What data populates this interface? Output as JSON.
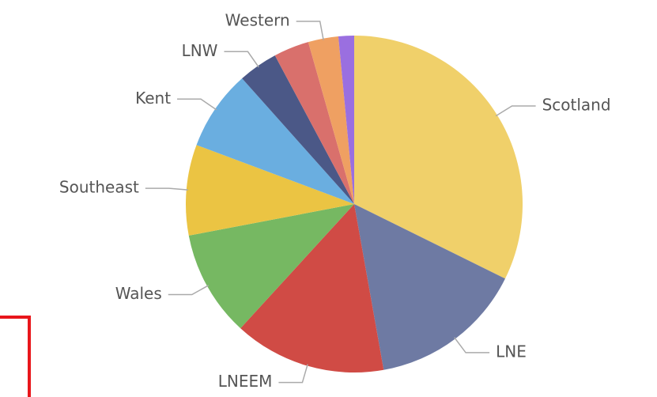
{
  "chart_data": {
    "type": "pie",
    "categories": [
      "Scotland",
      "LNE",
      "LNEEM",
      "Wales",
      "Southeast",
      "Kent",
      "LNW",
      null,
      "Western",
      null
    ],
    "values": [
      32.3,
      14.9,
      14.6,
      10.2,
      8.7,
      7.7,
      3.8,
      3.4,
      2.9,
      1.5
    ],
    "colors": [
      "#f0d06a",
      "#6e7aa3",
      "#d04b45",
      "#76b862",
      "#ebc443",
      "#6aaee0",
      "#4b5887",
      "#d9706c",
      "#efa062",
      "#9a6fe0"
    ]
  }
}
